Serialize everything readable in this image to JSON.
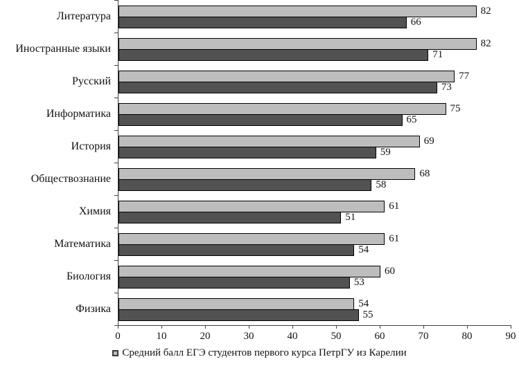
{
  "chart_data": {
    "type": "bar",
    "orientation": "horizontal",
    "title": "",
    "xlabel": "",
    "ylabel": "",
    "categories": [
      "Литература",
      "Иностранные языки",
      "Русский",
      "Информатика",
      "История",
      "Обществознание",
      "Химия",
      "Математика",
      "Биология",
      "Физика"
    ],
    "series": [
      {
        "name": "Средний балл ЕГЭ студентов первого курса ПетрГУ из Карелии",
        "color": "#bdbdbd",
        "values": [
          82,
          82,
          77,
          75,
          69,
          68,
          61,
          61,
          60,
          54
        ]
      },
      {
        "name": "",
        "color": "#525252",
        "values": [
          66,
          71,
          73,
          65,
          59,
          58,
          51,
          54,
          53,
          55
        ]
      }
    ],
    "xlim": [
      0,
      90
    ],
    "x_ticks": [
      "0",
      "10",
      "20",
      "30",
      "40",
      "50",
      "60",
      "70",
      "80",
      "90"
    ],
    "grid": false,
    "value_labels_shown": true,
    "bar_border_color": "#000000",
    "axis_color": "#3f3f3f",
    "legend": {
      "position": "bottom",
      "entries": [
        {
          "label": "Средний балл ЕГЭ студентов первого курса ПетрГУ из Карелии",
          "marker_color": "#bdbdbd"
        }
      ]
    }
  }
}
